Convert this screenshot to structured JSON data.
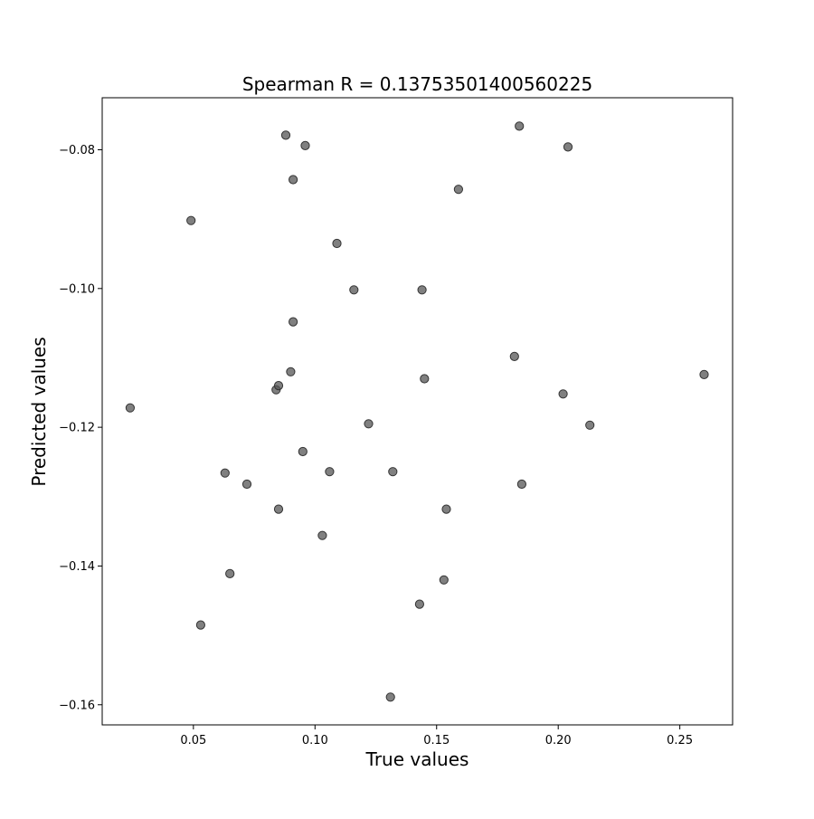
{
  "chart_data": {
    "type": "scatter",
    "title": "Spearman R = 0.13753501400560225",
    "xlabel": "True values",
    "ylabel": "Predicted values",
    "xlim": [
      0.0125,
      0.2717
    ],
    "ylim": [
      -0.1629,
      -0.0725
    ],
    "x_ticks": [
      0.05,
      0.1,
      0.15,
      0.2,
      0.25
    ],
    "x_tick_labels": [
      "0.05",
      "0.10",
      "0.15",
      "0.20",
      "0.25"
    ],
    "y_ticks": [
      -0.08,
      -0.1,
      -0.12,
      -0.14,
      -0.16
    ],
    "y_tick_labels": [
      "−0.08",
      "−0.10",
      "−0.12",
      "−0.14",
      "−0.16"
    ],
    "grid": false,
    "marker_color": "#555555",
    "marker_edge_color": "#333333",
    "marker_opacity": 0.75,
    "points": [
      {
        "x": 0.024,
        "y": -0.1172
      },
      {
        "x": 0.049,
        "y": -0.0902
      },
      {
        "x": 0.053,
        "y": -0.1485
      },
      {
        "x": 0.063,
        "y": -0.1266
      },
      {
        "x": 0.065,
        "y": -0.1411
      },
      {
        "x": 0.072,
        "y": -0.1282
      },
      {
        "x": 0.084,
        "y": -0.1146
      },
      {
        "x": 0.085,
        "y": -0.114
      },
      {
        "x": 0.085,
        "y": -0.1318
      },
      {
        "x": 0.088,
        "y": -0.0779
      },
      {
        "x": 0.09,
        "y": -0.112
      },
      {
        "x": 0.091,
        "y": -0.0843
      },
      {
        "x": 0.091,
        "y": -0.1048
      },
      {
        "x": 0.095,
        "y": -0.1235
      },
      {
        "x": 0.096,
        "y": -0.0794
      },
      {
        "x": 0.103,
        "y": -0.1356
      },
      {
        "x": 0.106,
        "y": -0.1264
      },
      {
        "x": 0.109,
        "y": -0.0935
      },
      {
        "x": 0.116,
        "y": -0.1002
      },
      {
        "x": 0.122,
        "y": -0.1195
      },
      {
        "x": 0.131,
        "y": -0.1589
      },
      {
        "x": 0.132,
        "y": -0.1264
      },
      {
        "x": 0.143,
        "y": -0.1455
      },
      {
        "x": 0.144,
        "y": -0.1002
      },
      {
        "x": 0.145,
        "y": -0.113
      },
      {
        "x": 0.153,
        "y": -0.142
      },
      {
        "x": 0.154,
        "y": -0.1318
      },
      {
        "x": 0.159,
        "y": -0.0857
      },
      {
        "x": 0.182,
        "y": -0.1098
      },
      {
        "x": 0.184,
        "y": -0.0766
      },
      {
        "x": 0.185,
        "y": -0.1282
      },
      {
        "x": 0.202,
        "y": -0.1152
      },
      {
        "x": 0.204,
        "y": -0.0796
      },
      {
        "x": 0.213,
        "y": -0.1197
      },
      {
        "x": 0.26,
        "y": -0.1124
      }
    ]
  }
}
